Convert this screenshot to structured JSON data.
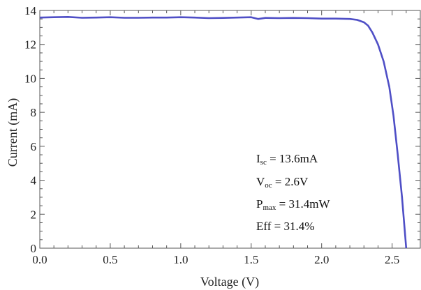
{
  "chart_data": {
    "type": "line",
    "title": "",
    "xlabel": "Voltage (V)",
    "ylabel": "Current (mA)",
    "xlim": [
      0.0,
      2.7
    ],
    "ylim": [
      0,
      14
    ],
    "x_ticks": [
      "0.0",
      "0.5",
      "1.0",
      "1.5",
      "2.0",
      "2.5"
    ],
    "x_tick_values": [
      0.0,
      0.5,
      1.0,
      1.5,
      2.0,
      2.5
    ],
    "y_ticks": [
      "0",
      "2",
      "4",
      "6",
      "8",
      "10",
      "12",
      "14"
    ],
    "y_tick_values": [
      0,
      2,
      4,
      6,
      8,
      10,
      12,
      14
    ],
    "grid": false,
    "series": [
      {
        "color": "#4f4fc6",
        "x": [
          0.0,
          0.1,
          0.2,
          0.3,
          0.4,
          0.5,
          0.6,
          0.7,
          0.8,
          0.9,
          1.0,
          1.1,
          1.2,
          1.3,
          1.4,
          1.5,
          1.55,
          1.6,
          1.7,
          1.8,
          1.9,
          2.0,
          2.1,
          2.2,
          2.25,
          2.3,
          2.33,
          2.36,
          2.4,
          2.44,
          2.48,
          2.51,
          2.54,
          2.57,
          2.59,
          2.6
        ],
        "y": [
          13.58,
          13.6,
          13.62,
          13.57,
          13.58,
          13.6,
          13.57,
          13.57,
          13.58,
          13.58,
          13.6,
          13.58,
          13.55,
          13.56,
          13.58,
          13.6,
          13.5,
          13.56,
          13.55,
          13.56,
          13.55,
          13.52,
          13.52,
          13.5,
          13.45,
          13.3,
          13.1,
          12.7,
          12.0,
          11.0,
          9.5,
          7.8,
          5.5,
          3.0,
          1.0,
          0.0
        ]
      }
    ],
    "annotations": [
      {
        "main": "I",
        "sub": "sc",
        "rest": " = 13.6mA"
      },
      {
        "main": "V",
        "sub": "oc",
        "rest": " = 2.6V"
      },
      {
        "main": "P",
        "sub": "max",
        "rest": " = 31.4mW"
      },
      {
        "main": "Eff",
        "sub": "",
        "rest": " = 31.4%"
      }
    ]
  }
}
